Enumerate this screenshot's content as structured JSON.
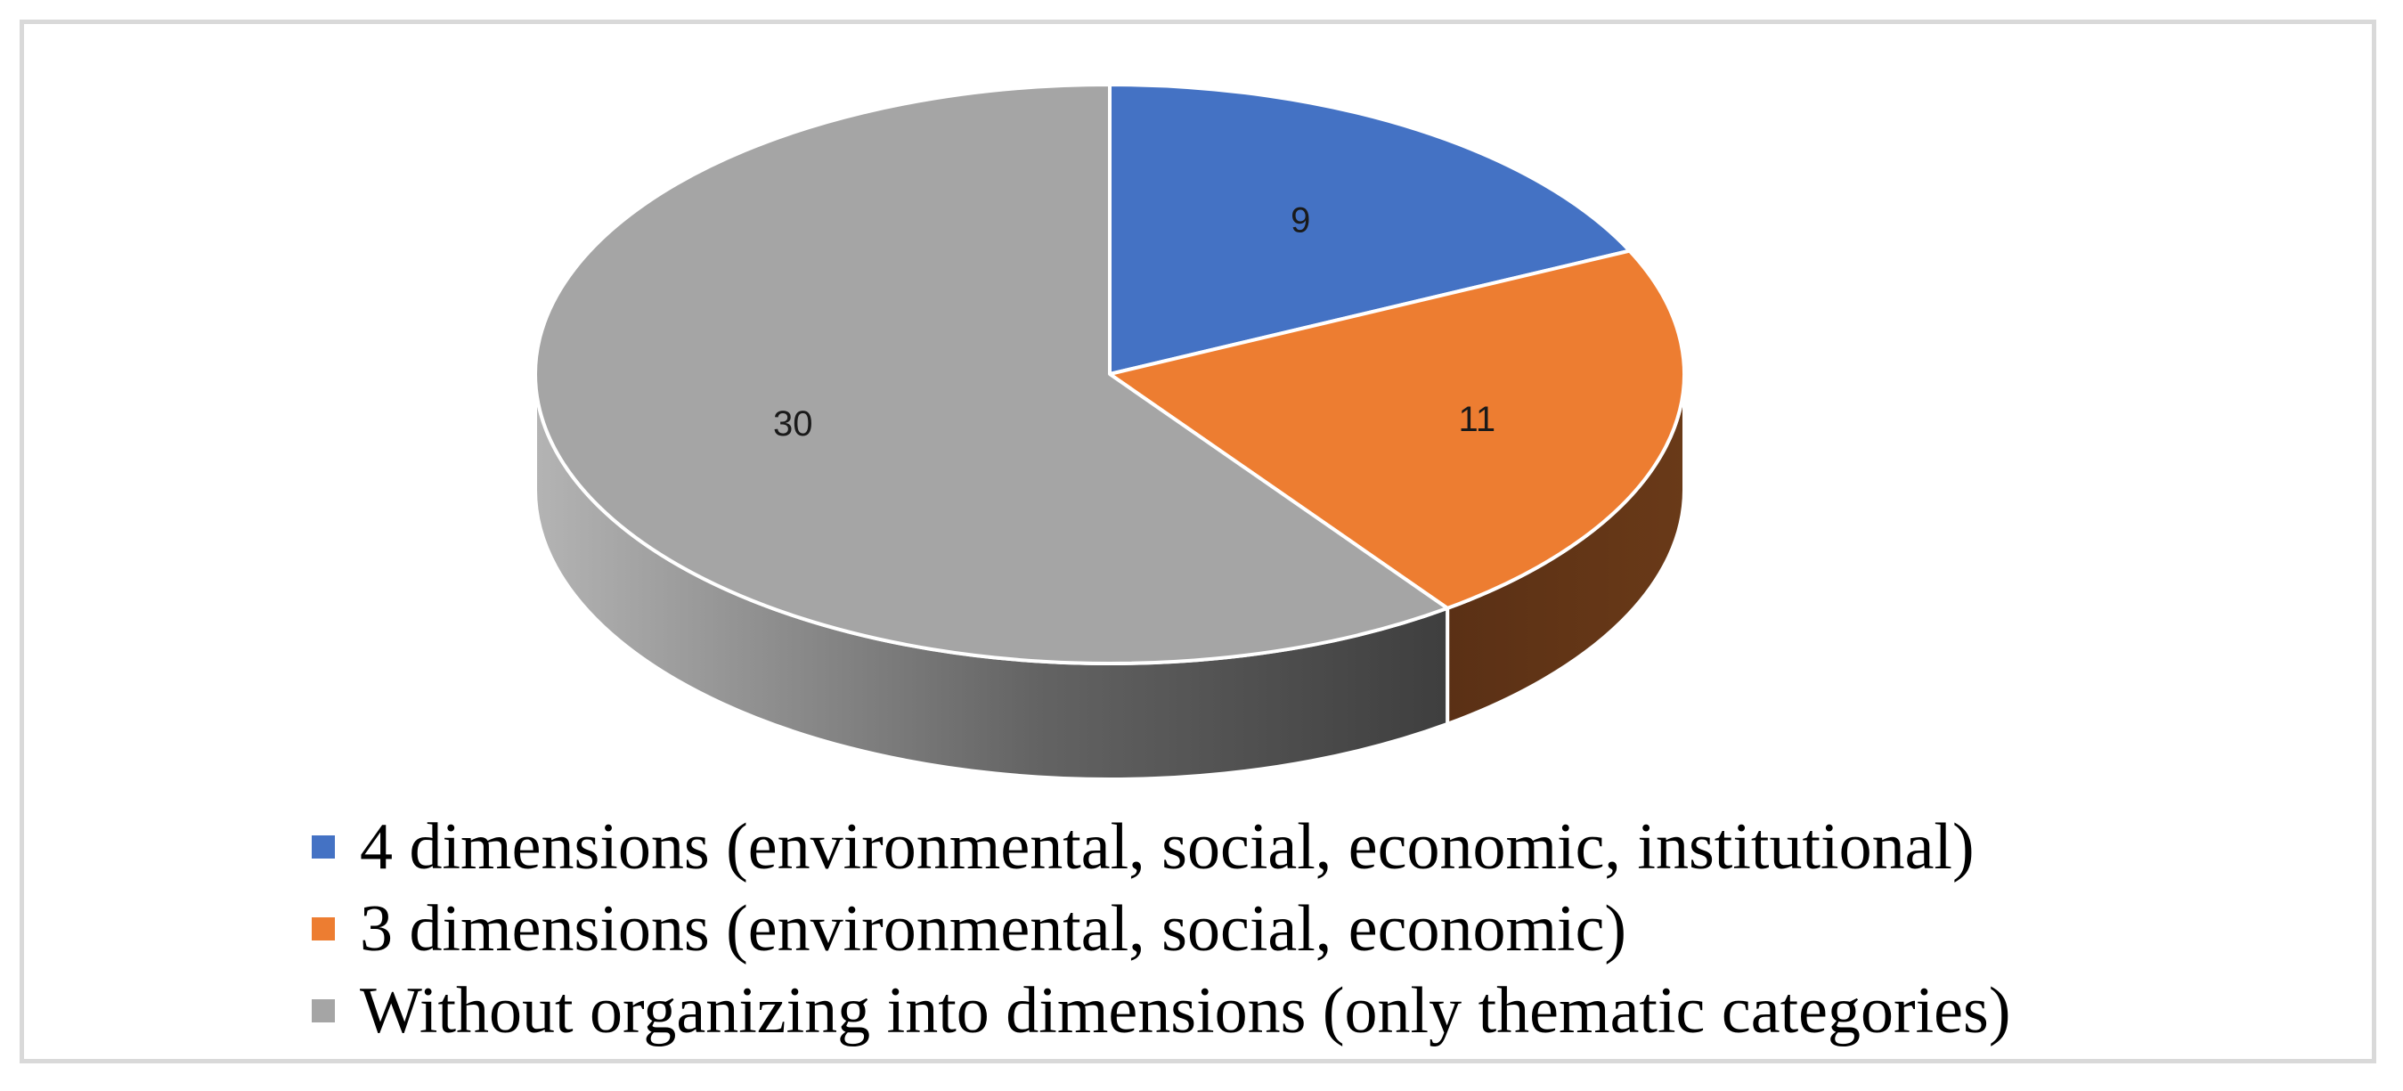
{
  "chart_data": {
    "type": "pie",
    "title": "",
    "labels": [
      "4 dimensions (environmental, social, economic, institutional)",
      "3 dimensions (environmental, social, economic)",
      "Without organizing into dimensions (only thematic categories)"
    ],
    "values": [
      9,
      11,
      30
    ],
    "colors": [
      "#4472c4",
      "#ed7d31",
      "#a5a5a5"
    ],
    "style": "3d",
    "data_labels": true,
    "legend_position": "bottom"
  }
}
